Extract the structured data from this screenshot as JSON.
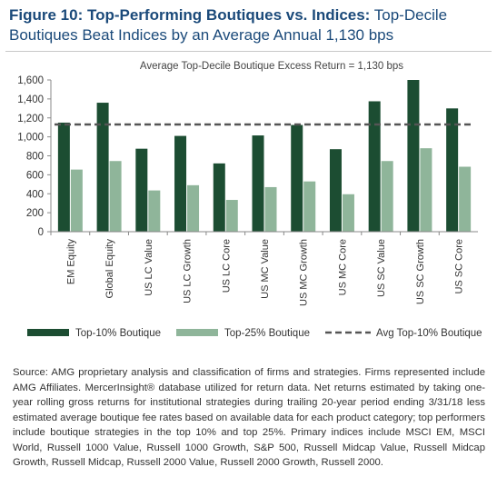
{
  "figure": {
    "title_bold": "Figure 10: Top-Performing Boutiques vs. Indices:",
    "title_rest": "Top-Decile Boutiques Beat Indices by an Average Annual 1,130 bps"
  },
  "chart_data": {
    "type": "bar",
    "title": "Average Top-Decile Boutique Excess Return = 1,130 bps",
    "categories": [
      "EM Equity",
      "Global Equity",
      "US LC Value",
      "US LC Growth",
      "US LC Core",
      "US MC Value",
      "US MC Growth",
      "US MC Core",
      "US SC Value",
      "US SC Growth",
      "US SC Core"
    ],
    "series": [
      {
        "name": "Top-10% Boutique",
        "color": "#1c4d32",
        "values": [
          1150,
          1360,
          875,
          1010,
          720,
          1015,
          1125,
          870,
          1375,
          1600,
          1300
        ]
      },
      {
        "name": "Top-25% Boutique",
        "color": "#8fb59a",
        "values": [
          655,
          745,
          435,
          490,
          335,
          470,
          530,
          395,
          745,
          880,
          685
        ]
      }
    ],
    "reference_line": {
      "name": "Avg Top-10% Boutique",
      "value": 1130,
      "color": "#555555",
      "style": "dashed"
    },
    "ylim": [
      0,
      1600
    ],
    "yticks": [
      0,
      200,
      400,
      600,
      800,
      1000,
      1200,
      1400,
      1600
    ],
    "ytick_labels": [
      "0",
      "200",
      "400",
      "600",
      "800",
      "1,000",
      "1,200",
      "1,400",
      "1,600"
    ],
    "xlabel": "",
    "ylabel": "",
    "grid": false,
    "legend_position": "bottom"
  },
  "source_text": "Source: AMG proprietary analysis and classification of firms and strategies. Firms represented include AMG Affiliates. MercerInsight® database utilized for return data. Net returns estimated by taking one-year rolling gross returns for institutional strategies during trailing 20-year period ending 3/31/18 less estimated average boutique fee rates based on available data for each product category; top performers include boutique strategies in the top 10% and top 25%. Primary indices include MSCI EM, MSCI World, Russell 1000 Value, Russell 1000 Growth, S&P 500, Russell Midcap Value, Russell Midcap Growth, Russell Midcap, Russell 2000 Value, Russell 2000 Growth, Russell 2000."
}
